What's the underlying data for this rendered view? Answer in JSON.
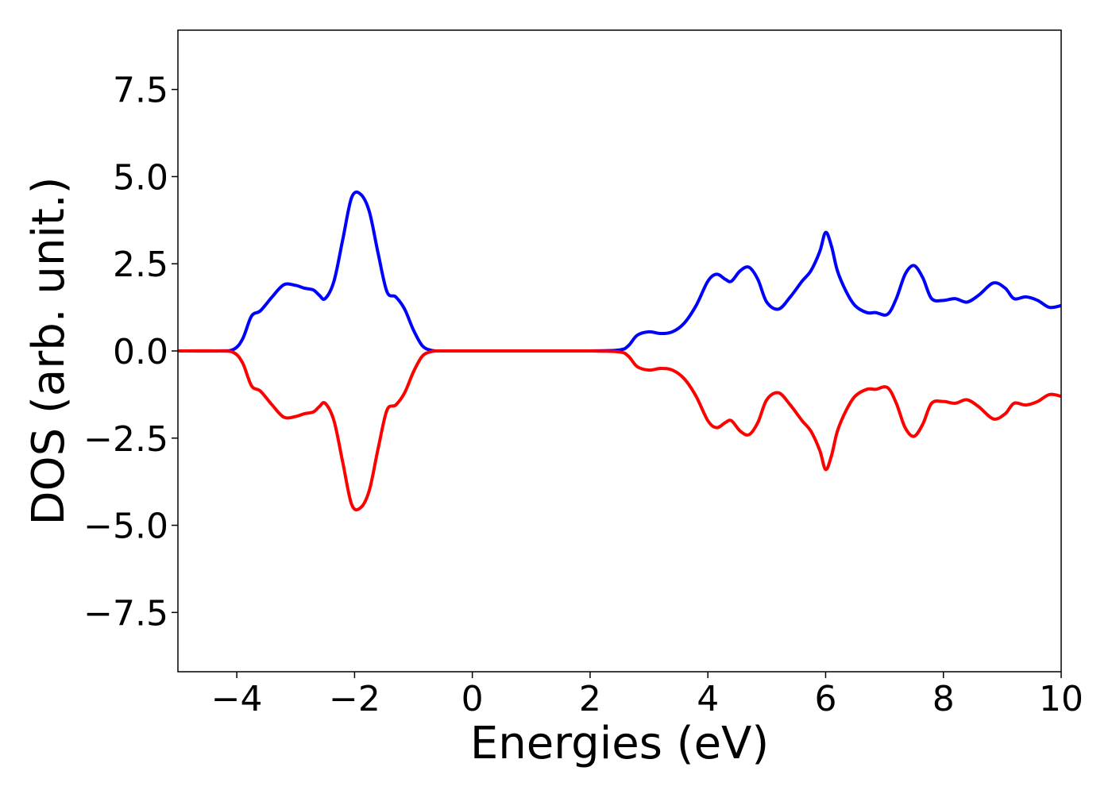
{
  "chart_data": {
    "type": "line",
    "title": "",
    "xlabel": "Energies (eV)",
    "ylabel": "DOS (arb. unit.)",
    "xlim": [
      -5,
      10
    ],
    "ylim": [
      -9.2,
      9.2
    ],
    "grid": false,
    "x_ticks": [
      -4,
      -2,
      0,
      2,
      4,
      6,
      8,
      10
    ],
    "x_tick_labels": [
      "−4",
      "−2",
      "0",
      "2",
      "4",
      "6",
      "8",
      "10"
    ],
    "y_ticks": [
      7.5,
      5.0,
      2.5,
      0.0,
      -2.5,
      -5.0,
      -7.5
    ],
    "y_tick_labels": [
      "7.5",
      "5.0",
      "2.5",
      "0.0",
      "−2.5",
      "−5.0",
      "−7.5"
    ],
    "series": [
      {
        "color": "#0000ff",
        "x": [
          -5.0,
          -4.3,
          -4.05,
          -3.9,
          -3.75,
          -3.6,
          -3.4,
          -3.2,
          -3.0,
          -2.85,
          -2.7,
          -2.6,
          -2.5,
          -2.35,
          -2.2,
          -2.05,
          -1.9,
          -1.75,
          -1.6,
          -1.45,
          -1.3,
          -1.15,
          -1.0,
          -0.85,
          -0.7,
          -0.55,
          0.0,
          1.0,
          2.0,
          2.5,
          2.65,
          2.8,
          3.0,
          3.2,
          3.4,
          3.6,
          3.8,
          4.0,
          4.15,
          4.3,
          4.4,
          4.55,
          4.7,
          4.85,
          5.0,
          5.2,
          5.4,
          5.6,
          5.75,
          5.9,
          6.0,
          6.1,
          6.2,
          6.35,
          6.5,
          6.7,
          6.85,
          7.05,
          7.2,
          7.35,
          7.5,
          7.65,
          7.8,
          8.0,
          8.2,
          8.4,
          8.6,
          8.85,
          9.05,
          9.2,
          9.4,
          9.6,
          9.8,
          10.0
        ],
        "values": [
          0.0,
          0.0,
          0.05,
          0.35,
          1.0,
          1.15,
          1.55,
          1.9,
          1.88,
          1.8,
          1.75,
          1.6,
          1.5,
          2.0,
          3.2,
          4.4,
          4.5,
          4.0,
          2.8,
          1.7,
          1.55,
          1.2,
          0.6,
          0.15,
          0.02,
          0.0,
          0.0,
          0.0,
          0.0,
          0.03,
          0.15,
          0.45,
          0.55,
          0.5,
          0.55,
          0.8,
          1.3,
          2.0,
          2.2,
          2.05,
          2.0,
          2.3,
          2.4,
          2.05,
          1.4,
          1.2,
          1.55,
          2.0,
          2.3,
          2.85,
          3.4,
          3.0,
          2.3,
          1.7,
          1.3,
          1.1,
          1.1,
          1.05,
          1.5,
          2.2,
          2.45,
          2.1,
          1.5,
          1.45,
          1.5,
          1.4,
          1.6,
          1.95,
          1.8,
          1.5,
          1.55,
          1.45,
          1.25,
          1.3
        ]
      },
      {
        "color": "#ff0000",
        "x": [
          -5.0,
          -4.3,
          -4.05,
          -3.9,
          -3.75,
          -3.6,
          -3.4,
          -3.2,
          -3.0,
          -2.85,
          -2.7,
          -2.6,
          -2.5,
          -2.35,
          -2.2,
          -2.05,
          -1.9,
          -1.75,
          -1.6,
          -1.45,
          -1.3,
          -1.15,
          -1.0,
          -0.85,
          -0.7,
          -0.55,
          0.0,
          1.0,
          2.0,
          2.5,
          2.65,
          2.8,
          3.0,
          3.2,
          3.4,
          3.6,
          3.8,
          4.0,
          4.15,
          4.3,
          4.4,
          4.55,
          4.7,
          4.85,
          5.0,
          5.2,
          5.4,
          5.6,
          5.75,
          5.9,
          6.0,
          6.1,
          6.2,
          6.35,
          6.5,
          6.7,
          6.85,
          7.05,
          7.2,
          7.35,
          7.5,
          7.65,
          7.8,
          8.0,
          8.2,
          8.4,
          8.6,
          8.85,
          9.05,
          9.2,
          9.4,
          9.6,
          9.8,
          10.0
        ],
        "values": [
          0.0,
          0.0,
          -0.05,
          -0.35,
          -1.0,
          -1.15,
          -1.55,
          -1.9,
          -1.88,
          -1.8,
          -1.75,
          -1.6,
          -1.5,
          -2.0,
          -3.2,
          -4.4,
          -4.5,
          -4.0,
          -2.8,
          -1.7,
          -1.55,
          -1.2,
          -0.6,
          -0.15,
          -0.02,
          0.0,
          0.0,
          0.0,
          0.0,
          -0.03,
          -0.15,
          -0.45,
          -0.55,
          -0.5,
          -0.55,
          -0.8,
          -1.3,
          -2.0,
          -2.2,
          -2.05,
          -2.0,
          -2.3,
          -2.4,
          -2.05,
          -1.4,
          -1.2,
          -1.55,
          -2.0,
          -2.3,
          -2.85,
          -3.4,
          -3.0,
          -2.3,
          -1.7,
          -1.3,
          -1.1,
          -1.1,
          -1.05,
          -1.5,
          -2.2,
          -2.45,
          -2.1,
          -1.5,
          -1.45,
          -1.5,
          -1.4,
          -1.6,
          -1.95,
          -1.8,
          -1.5,
          -1.55,
          -1.45,
          -1.25,
          -1.3
        ]
      }
    ]
  }
}
